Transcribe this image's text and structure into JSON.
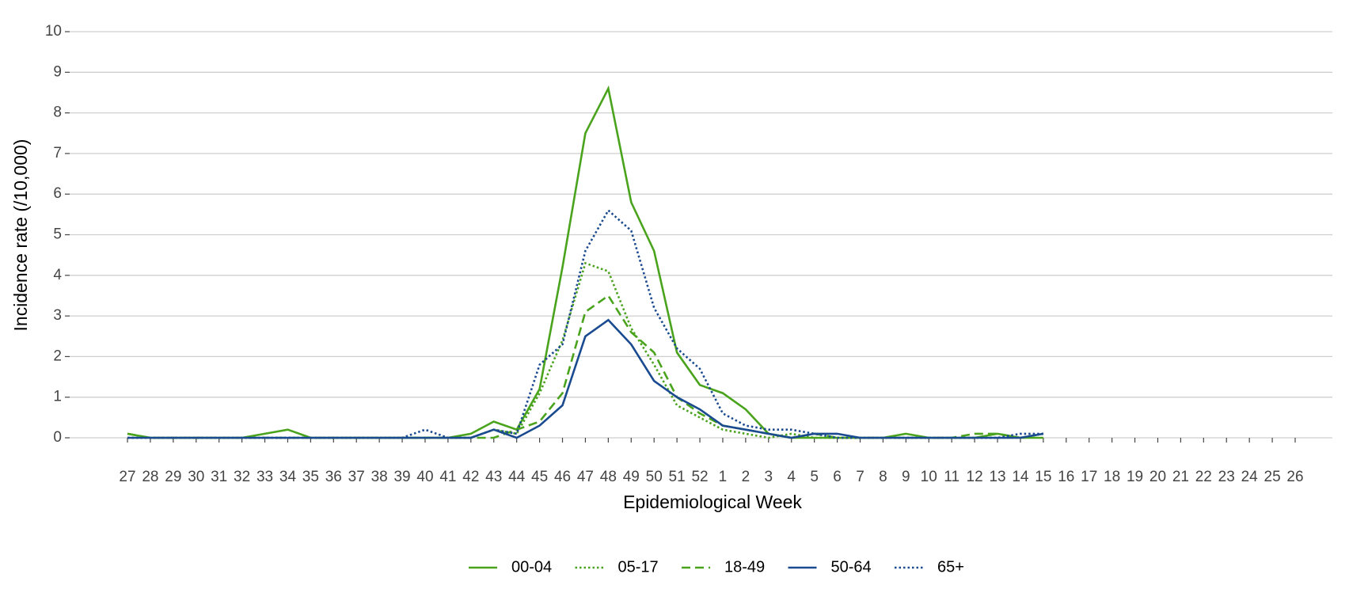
{
  "chart_data": {
    "type": "line",
    "x_label": "Epidemiological Week",
    "y_label": "Incidence rate (/10,000)",
    "categories": [
      "27",
      "28",
      "29",
      "30",
      "31",
      "32",
      "33",
      "34",
      "35",
      "36",
      "37",
      "38",
      "39",
      "40",
      "41",
      "42",
      "43",
      "44",
      "45",
      "46",
      "47",
      "48",
      "49",
      "50",
      "51",
      "52",
      "1",
      "2",
      "3",
      "4",
      "5",
      "6",
      "7",
      "8",
      "9",
      "10",
      "11",
      "12",
      "13",
      "14",
      "15",
      "16",
      "17",
      "18",
      "19",
      "20",
      "21",
      "22",
      "23",
      "24",
      "25",
      "26"
    ],
    "series": [
      {
        "name": "00-04",
        "color": "#4aa31c",
        "dash": "solid",
        "values": [
          0.1,
          0,
          0,
          0,
          0,
          0,
          0.1,
          0.2,
          0,
          0,
          0,
          0,
          0,
          0,
          0,
          0.1,
          0.4,
          0.2,
          1.2,
          4.2,
          7.5,
          8.6,
          5.8,
          4.6,
          2.1,
          1.3,
          1.1,
          0.7,
          0.1,
          0,
          0,
          0,
          0,
          0,
          0.1,
          0,
          0,
          0,
          0.1,
          0,
          0,
          null,
          null,
          null,
          null,
          null,
          null,
          null,
          null,
          null,
          null,
          null
        ]
      },
      {
        "name": "05-17",
        "color": "#4aa31c",
        "dash": "dotted",
        "values": [
          0,
          0,
          0,
          0,
          0,
          0,
          0,
          0,
          0,
          0,
          0,
          0,
          0,
          0,
          0,
          0,
          0.2,
          0.1,
          1.1,
          2.4,
          4.3,
          4.1,
          2.7,
          1.8,
          0.8,
          0.5,
          0.2,
          0.1,
          0,
          0.1,
          0,
          0,
          0,
          0,
          0,
          0,
          0,
          0,
          0,
          0,
          0.1,
          null,
          null,
          null,
          null,
          null,
          null,
          null,
          null,
          null,
          null,
          null
        ]
      },
      {
        "name": "18-49",
        "color": "#4aa31c",
        "dash": "dashed",
        "values": [
          0.1,
          0,
          0,
          0,
          0,
          0,
          0,
          0,
          0,
          0,
          0,
          0,
          0,
          0,
          0,
          0,
          0,
          0.2,
          0.4,
          1.1,
          3.1,
          3.5,
          2.6,
          2.1,
          1,
          0.6,
          0.3,
          0.2,
          0.1,
          0,
          0.1,
          0,
          0,
          0,
          0,
          0,
          0,
          0.1,
          0.1,
          0,
          0.1,
          null,
          null,
          null,
          null,
          null,
          null,
          null,
          null,
          null,
          null,
          null
        ]
      },
      {
        "name": "50-64",
        "color": "#1a4a8f",
        "dash": "solid",
        "values": [
          0,
          0,
          0,
          0,
          0,
          0,
          0,
          0,
          0,
          0,
          0,
          0,
          0,
          0,
          0,
          0,
          0.2,
          0,
          0.3,
          0.8,
          2.5,
          2.9,
          2.3,
          1.4,
          1,
          0.7,
          0.3,
          0.2,
          0.1,
          0,
          0.1,
          0.1,
          0,
          0,
          0,
          0,
          0,
          0,
          0,
          0,
          0.1,
          null,
          null,
          null,
          null,
          null,
          null,
          null,
          null,
          null,
          null,
          null
        ]
      },
      {
        "name": "65+",
        "color": "#1a4a8f",
        "dash": "dotted",
        "values": [
          0,
          0,
          0,
          0,
          0,
          0,
          0,
          0,
          0,
          0,
          0,
          0,
          0,
          0.2,
          0,
          0,
          0.2,
          0.1,
          1.8,
          2.3,
          4.6,
          5.6,
          5.1,
          3.2,
          2.2,
          1.7,
          0.6,
          0.3,
          0.2,
          0.2,
          0.1,
          0,
          0,
          0,
          0,
          0,
          0,
          0,
          0,
          0.1,
          0.1,
          null,
          null,
          null,
          null,
          null,
          null,
          null,
          null,
          null,
          null,
          null
        ]
      }
    ],
    "ylim": [
      0,
      10
    ],
    "yticks": [
      0,
      1,
      2,
      3,
      4,
      5,
      6,
      7,
      8,
      9,
      10
    ],
    "grid": true,
    "legend": "bottom"
  }
}
